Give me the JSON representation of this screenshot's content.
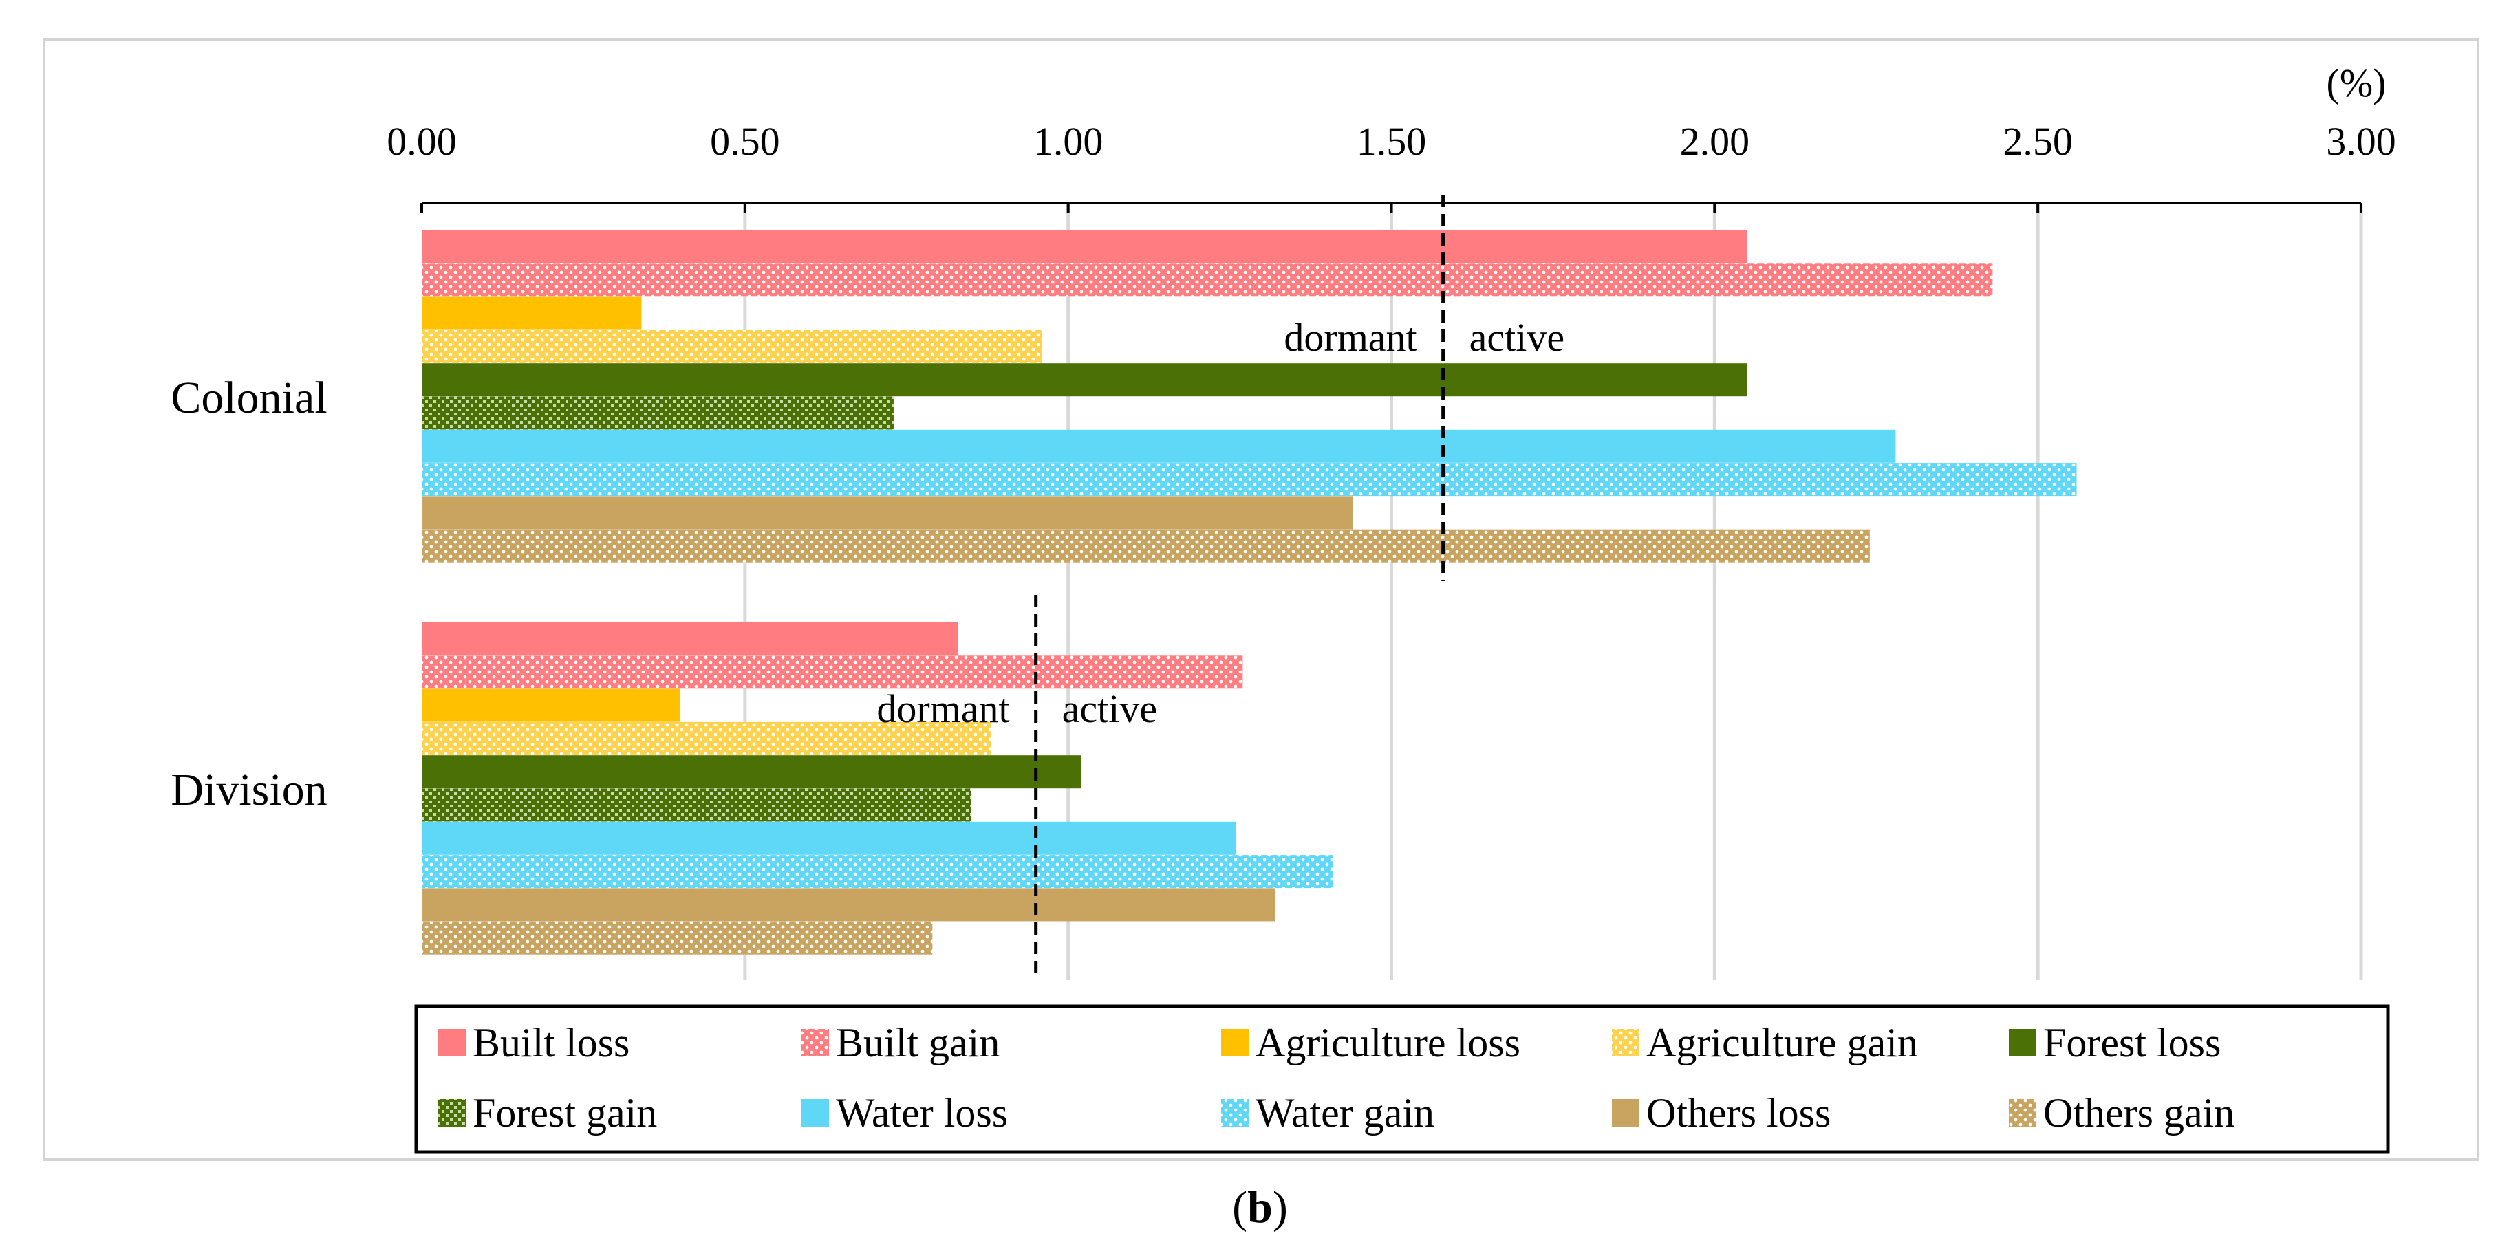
{
  "chart_data": {
    "type": "bar",
    "orientation": "horizontal",
    "unit_label": "(%)",
    "categories": [
      "Colonial",
      "Division"
    ],
    "xlim": [
      0,
      3
    ],
    "xticks": [
      "0.00",
      "0.50",
      "1.00",
      "1.50",
      "2.00",
      "2.50",
      "3.00"
    ],
    "series": [
      {
        "name": "Built loss",
        "color": "#ff7c80",
        "pattern": "solid",
        "values": [
          2.05,
          0.83
        ]
      },
      {
        "name": "Built gain",
        "color": "#ff7c80",
        "pattern": "dots",
        "values": [
          2.43,
          1.27
        ]
      },
      {
        "name": "Agriculture loss",
        "color": "#ffc000",
        "pattern": "solid",
        "values": [
          0.34,
          0.4
        ]
      },
      {
        "name": "Agriculture gain",
        "color": "#ffd24d",
        "pattern": "dots",
        "values": [
          0.96,
          0.88
        ]
      },
      {
        "name": "Forest loss",
        "color": "#4a7006",
        "pattern": "solid",
        "values": [
          2.05,
          1.02
        ]
      },
      {
        "name": "Forest gain",
        "color": "#4a7006",
        "pattern": "checker",
        "values": [
          0.73,
          0.85
        ]
      },
      {
        "name": "Water loss",
        "color": "#5fd7f7",
        "pattern": "solid",
        "values": [
          2.28,
          1.26
        ]
      },
      {
        "name": "Water gain",
        "color": "#5fd7f7",
        "pattern": "dots",
        "values": [
          2.56,
          1.41
        ]
      },
      {
        "name": "Others loss",
        "color": "#c8a460",
        "pattern": "solid",
        "values": [
          1.44,
          1.32
        ]
      },
      {
        "name": "Others gain",
        "color": "#c8a460",
        "pattern": "dots",
        "values": [
          2.24,
          0.79
        ]
      }
    ],
    "thresholds": [
      {
        "category": "Colonial",
        "value": 1.58,
        "left_label": "dormant",
        "right_label": "active"
      },
      {
        "category": "Division",
        "value": 0.95,
        "left_label": "dormant",
        "right_label": "active"
      }
    ],
    "gridlines": true,
    "legend_position": "bottom"
  },
  "caption": {
    "open": "(",
    "letter": "b",
    "close": ")"
  }
}
